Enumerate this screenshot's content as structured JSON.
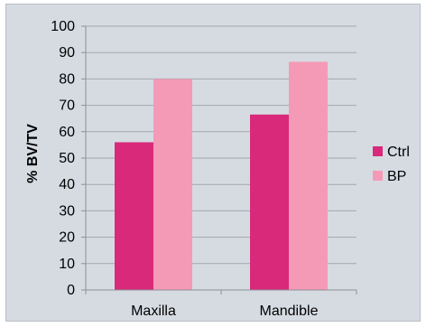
{
  "chart_data": {
    "type": "bar",
    "categories": [
      "Maxilla",
      "Mandible"
    ],
    "series": [
      {
        "name": "Ctrl",
        "values": [
          56,
          66.5
        ],
        "color": "#d9297a"
      },
      {
        "name": "BP",
        "values": [
          80,
          86.5
        ],
        "color": "#f59ab6"
      }
    ],
    "title": "",
    "xlabel": "",
    "ylabel": "% BV/TV",
    "ylim": [
      0,
      100
    ],
    "yticks": [
      0,
      10,
      20,
      30,
      40,
      50,
      60,
      70,
      80,
      90,
      100
    ],
    "grid": true,
    "legend": "right",
    "colors": {
      "background": "#d6dbe2",
      "gridline": "#a3a7ad",
      "axis": "#8c9096"
    }
  }
}
